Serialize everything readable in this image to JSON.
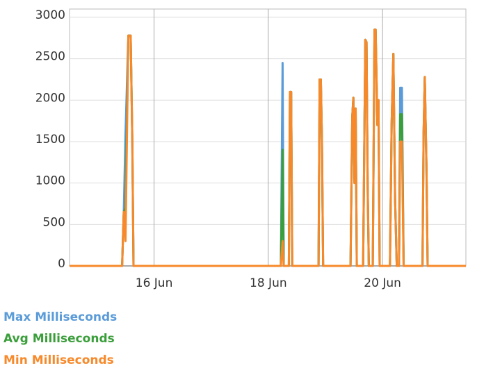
{
  "chart_data": {
    "type": "line",
    "x": [
      14.52,
      15.44,
      15.47,
      15.5,
      15.55,
      15.59,
      15.62,
      15.64,
      18.22,
      18.25,
      18.27,
      18.36,
      18.38,
      18.4,
      18.42,
      18.88,
      18.9,
      18.92,
      18.94,
      18.96,
      19.44,
      19.47,
      19.49,
      19.51,
      19.53,
      19.55,
      19.66,
      19.7,
      19.72,
      19.74,
      19.76,
      19.83,
      19.86,
      19.88,
      19.91,
      19.93,
      19.95,
      20.13,
      20.16,
      20.19,
      20.22,
      20.25,
      20.29,
      20.31,
      20.34,
      20.37,
      20.7,
      20.72,
      20.74,
      20.77,
      20.79,
      21.46
    ],
    "series": [
      {
        "name": "Max Milliseconds",
        "color": "#5a9bd8",
        "values": [
          0,
          0,
          650,
          1600,
          2780,
          2780,
          1500,
          0,
          0,
          2450,
          0,
          0,
          2100,
          2100,
          0,
          0,
          2250,
          2250,
          1500,
          0,
          0,
          1800,
          2030,
          1000,
          1900,
          0,
          0,
          2730,
          2700,
          1000,
          0,
          0,
          2850,
          2850,
          1700,
          2000,
          0,
          0,
          1700,
          2560,
          800,
          0,
          0,
          2150,
          2150,
          0,
          0,
          1600,
          2280,
          1200,
          0,
          0
        ]
      },
      {
        "name": "Avg Milliseconds",
        "color": "#3a9e3a",
        "values": [
          0,
          0,
          650,
          700,
          2780,
          2780,
          1500,
          0,
          0,
          1400,
          0,
          0,
          2100,
          2100,
          0,
          0,
          2250,
          2250,
          1500,
          0,
          0,
          1800,
          2030,
          1000,
          1900,
          0,
          0,
          2730,
          2700,
          1000,
          0,
          0,
          2850,
          2850,
          1700,
          2000,
          0,
          0,
          1700,
          2560,
          800,
          0,
          0,
          1830,
          1830,
          0,
          0,
          1600,
          2280,
          1200,
          0,
          0
        ]
      },
      {
        "name": "Min Milliseconds",
        "color": "#f7892a",
        "values": [
          0,
          0,
          650,
          300,
          2780,
          2780,
          1500,
          0,
          0,
          300,
          0,
          0,
          2100,
          2100,
          0,
          0,
          2250,
          2250,
          1500,
          0,
          0,
          1800,
          2030,
          1000,
          1900,
          0,
          0,
          2730,
          2700,
          1000,
          0,
          0,
          2850,
          2850,
          1700,
          2000,
          0,
          0,
          1700,
          2560,
          800,
          0,
          0,
          1500,
          1500,
          0,
          0,
          1600,
          2280,
          1200,
          0,
          0
        ]
      }
    ],
    "xlim": [
      14.52,
      21.46
    ],
    "xticks": [
      {
        "value": 16,
        "label": "16 Jun"
      },
      {
        "value": 18,
        "label": "18 Jun"
      },
      {
        "value": 20,
        "label": "20 Jun"
      }
    ],
    "ylim": [
      0,
      3100
    ],
    "yticks": [
      0,
      500,
      1000,
      1500,
      2000,
      2500,
      3000
    ],
    "grid": true
  }
}
